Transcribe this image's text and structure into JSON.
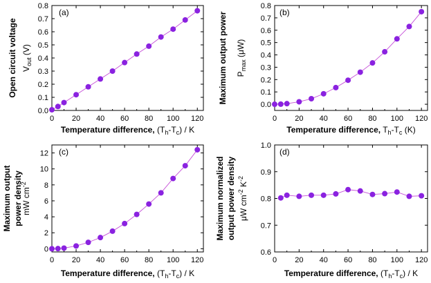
{
  "chart_data": [
    {
      "type": "line",
      "panel_label": "(a)",
      "xlabel": "Temperature difference, (T",
      "xlabel_sub": "h",
      "xlabel_mid": "-T",
      "xlabel_sub2": "c",
      "xlabel_end": ") / K",
      "ylabel": "V",
      "ylabel_sub": "out",
      "ylabel_end": " (V)",
      "ylabel_outer": "Open circuit voltage",
      "xlim": [
        0,
        125
      ],
      "ylim": [
        0,
        0.8
      ],
      "xticks": [
        "0",
        "20",
        "40",
        "60",
        "80",
        "100",
        "120"
      ],
      "yticks": [
        "0.0",
        "0.1",
        "0.2",
        "0.3",
        "0.4",
        "0.5",
        "0.6",
        "0.7",
        "0.8"
      ],
      "x": [
        0,
        5,
        10,
        20,
        30,
        40,
        50,
        60,
        70,
        80,
        90,
        100,
        110,
        120
      ],
      "y": [
        0.005,
        0.03,
        0.06,
        0.12,
        0.18,
        0.24,
        0.3,
        0.365,
        0.43,
        0.49,
        0.56,
        0.62,
        0.69,
        0.76
      ]
    },
    {
      "type": "line",
      "panel_label": "(b)",
      "xlabel": "Temperature difference, T",
      "xlabel_sub": "h",
      "xlabel_mid": "-T",
      "xlabel_sub2": "c",
      "xlabel_end": " (K)",
      "ylabel": "P",
      "ylabel_sub": "max",
      "ylabel_end": " (μW)",
      "ylabel_outer": "Maximum output power",
      "xlim": [
        0,
        125
      ],
      "ylim": [
        -0.05,
        0.8
      ],
      "xticks": [
        "0",
        "20",
        "40",
        "60",
        "80",
        "100",
        "120"
      ],
      "yticks": [
        "0.0",
        "0.1",
        "0.2",
        "0.3",
        "0.4",
        "0.5",
        "0.6",
        "0.7",
        "0.8"
      ],
      "x": [
        0,
        5,
        10,
        20,
        30,
        40,
        50,
        60,
        70,
        80,
        90,
        100,
        110,
        120
      ],
      "y": [
        0.0,
        0.001,
        0.005,
        0.02,
        0.045,
        0.085,
        0.135,
        0.195,
        0.26,
        0.335,
        0.425,
        0.53,
        0.63,
        0.75
      ]
    },
    {
      "type": "line",
      "panel_label": "(c)",
      "xlabel": "Temperature difference, (T",
      "xlabel_sub": "h",
      "xlabel_mid": "-T",
      "xlabel_sub2": "c",
      "xlabel_end": ") / K",
      "ylabel": "mW cm",
      "ylabel_sup": "-2",
      "ylabel_outer": "Maximum output",
      "ylabel_outer2": "power density",
      "xlim": [
        0,
        125
      ],
      "ylim": [
        -0.4,
        13
      ],
      "xticks": [
        "0",
        "20",
        "40",
        "60",
        "80",
        "100",
        "120"
      ],
      "yticks": [
        "0",
        "2",
        "4",
        "6",
        "8",
        "10",
        "12"
      ],
      "x": [
        0,
        5,
        10,
        20,
        30,
        40,
        50,
        60,
        70,
        80,
        90,
        100,
        110,
        120
      ],
      "y": [
        0.0,
        0.02,
        0.08,
        0.35,
        0.8,
        1.4,
        2.2,
        3.15,
        4.3,
        5.6,
        7.0,
        8.8,
        10.4,
        12.4
      ]
    },
    {
      "type": "line",
      "panel_label": "(d)",
      "xlabel": "Temperature difference, (T",
      "xlabel_sub": "h",
      "xlabel_mid": "-T",
      "xlabel_sub2": "c",
      "xlabel_end": ") / K",
      "ylabel": "μW cm",
      "ylabel_sup": "-2",
      "ylabel_mid": " K",
      "ylabel_sup2": "-2",
      "ylabel_outer": "Maximum normalized",
      "ylabel_outer2": "output power density",
      "xlim": [
        0,
        125
      ],
      "ylim": [
        0.6,
        1.0
      ],
      "xticks": [
        "0",
        "20",
        "40",
        "60",
        "80",
        "100",
        "120"
      ],
      "yticks": [
        "0.6",
        "0.7",
        "0.8",
        "0.9",
        "1.0"
      ],
      "x": [
        5,
        10,
        20,
        30,
        40,
        50,
        60,
        70,
        80,
        90,
        100,
        110,
        120
      ],
      "y": [
        0.802,
        0.812,
        0.808,
        0.812,
        0.812,
        0.817,
        0.833,
        0.828,
        0.815,
        0.818,
        0.824,
        0.808,
        0.81
      ]
    }
  ]
}
